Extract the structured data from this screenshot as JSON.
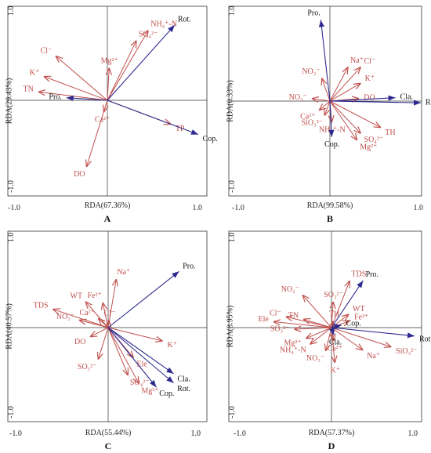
{
  "colors": {
    "env": "#c0504d",
    "species": "#2e2a8f",
    "axis": "#333333"
  },
  "chart_data": [
    {
      "type": "scatter",
      "panel": "A",
      "xlabel": "RDA(67.36%)",
      "ylabel": "RDA(29.43%)",
      "xlim": [
        -1.0,
        1.0
      ],
      "ylim": [
        -1.0,
        1.0
      ],
      "ticks": {
        "xmin": "-1.0",
        "xmax": "1.0",
        "ymin": "-1.0",
        "ymax": "1.0"
      },
      "env": [
        {
          "label": "NH₄⁺-N",
          "x": 0.45,
          "y": 0.82
        },
        {
          "label": "SO₄²⁻",
          "x": 0.32,
          "y": 0.7
        },
        {
          "label": "Cl⁻",
          "x": -0.57,
          "y": 0.52
        },
        {
          "label": "Mg²⁺",
          "x": 0.02,
          "y": 0.38
        },
        {
          "label": "K⁺",
          "x": -0.7,
          "y": 0.28
        },
        {
          "label": "TN",
          "x": -0.76,
          "y": 0.1
        },
        {
          "label": "Ca²⁺",
          "x": -0.04,
          "y": -0.14
        },
        {
          "label": "TP",
          "x": 0.7,
          "y": -0.28
        },
        {
          "label": "DO",
          "x": -0.23,
          "y": -0.78
        }
      ],
      "species": [
        {
          "label": "Rot.",
          "x": 0.74,
          "y": 0.88
        },
        {
          "label": "Pro.",
          "x": -0.45,
          "y": 0.03
        },
        {
          "label": "Cop.",
          "x": 1.0,
          "y": -0.4
        }
      ]
    },
    {
      "type": "scatter",
      "panel": "B",
      "xlabel": "RDA(99.58%)",
      "ylabel": "RDA(0.33%)",
      "xlim": [
        -1.0,
        1.0
      ],
      "ylim": [
        -1.0,
        1.0
      ],
      "ticks": {
        "xmin": "-1.0",
        "xmax": "1.0",
        "ymin": "-1.0",
        "ymax": "1.0"
      },
      "env": [
        {
          "label": "Na⁺",
          "x": 0.2,
          "y": 0.4
        },
        {
          "label": "Cl⁻",
          "x": 0.34,
          "y": 0.4
        },
        {
          "label": "NO₂⁻",
          "x": -0.09,
          "y": 0.27
        },
        {
          "label": "K⁺",
          "x": 0.34,
          "y": 0.21
        },
        {
          "label": "DO",
          "x": 0.32,
          "y": 0.03
        },
        {
          "label": "NO₃⁻",
          "x": -0.2,
          "y": 0.03
        },
        {
          "label": "Ca²⁺",
          "x": -0.12,
          "y": -0.11
        },
        {
          "label": "SiO₃²⁻",
          "x": -0.06,
          "y": -0.17
        },
        {
          "label": "NH₄⁺-N",
          "x": 0.02,
          "y": -0.25
        },
        {
          "label": "TH",
          "x": 0.56,
          "y": -0.31
        },
        {
          "label": "SO₄²⁻",
          "x": 0.34,
          "y": -0.38
        },
        {
          "label": "Mg²⁺",
          "x": 0.3,
          "y": -0.46
        }
      ],
      "species": [
        {
          "label": "Pro.",
          "x": -0.1,
          "y": 0.95
        },
        {
          "label": "Cla.",
          "x": 0.72,
          "y": 0.04
        },
        {
          "label": "Rot.",
          "x": 1.0,
          "y": -0.02
        },
        {
          "label": "Cop.",
          "x": 0.02,
          "y": -0.42
        }
      ]
    },
    {
      "type": "scatter",
      "panel": "C",
      "xlabel": "RDA(55.44%)",
      "ylabel": "RDA(40.57%)",
      "xlim": [
        -1.0,
        1.0
      ],
      "ylim": [
        -1.0,
        1.0
      ],
      "ticks": {
        "xmin": "-1.0",
        "xmax": "1.0",
        "ymin": "-1.0",
        "ymax": "1.0"
      },
      "env": [
        {
          "label": "Na⁺",
          "x": 0.09,
          "y": 0.58
        },
        {
          "label": "Fe²⁺",
          "x": -0.06,
          "y": 0.3
        },
        {
          "label": "WT",
          "x": -0.25,
          "y": 0.31
        },
        {
          "label": "TDS",
          "x": -0.61,
          "y": 0.22
        },
        {
          "label": "Ca²⁺",
          "x": -0.11,
          "y": 0.11
        },
        {
          "label": "NO₃⁻",
          "x": -0.32,
          "y": 0.09
        },
        {
          "label": "Cl⁻",
          "x": 0.01,
          "y": 0.09
        },
        {
          "label": "DO",
          "x": -0.2,
          "y": -0.11
        },
        {
          "label": "K⁺",
          "x": 0.6,
          "y": -0.16
        },
        {
          "label": "Ele",
          "x": 0.28,
          "y": -0.36
        },
        {
          "label": "SO₃²⁻",
          "x": -0.11,
          "y": -0.38
        },
        {
          "label": "SO₄²⁻",
          "x": 0.22,
          "y": -0.57
        },
        {
          "label": "Mg²⁺",
          "x": 0.34,
          "y": -0.67
        }
      ],
      "species": [
        {
          "label": "Pro.",
          "x": 0.78,
          "y": 0.67
        },
        {
          "label": "Cla.",
          "x": 0.72,
          "y": -0.55
        },
        {
          "label": "Rot.",
          "x": 0.72,
          "y": -0.66
        },
        {
          "label": "Cop.",
          "x": 0.53,
          "y": -0.71
        }
      ]
    },
    {
      "type": "scatter",
      "panel": "D",
      "xlabel": "RDA(57.37%)",
      "ylabel": "RDA(8.95%)",
      "xlim": [
        -1.0,
        1.0
      ],
      "ylim": [
        -1.0,
        1.0
      ],
      "ticks": {
        "xmin": "-1.0",
        "xmax": "1.0",
        "ymin": "-1.0",
        "ymax": "1.0"
      },
      "env": [
        {
          "label": "TDS",
          "x": 0.22,
          "y": 0.56
        },
        {
          "label": "NO₂⁻",
          "x": -0.35,
          "y": 0.39
        },
        {
          "label": "SO₂²⁻",
          "x": 0.02,
          "y": 0.31
        },
        {
          "label": "WT",
          "x": 0.21,
          "y": 0.16
        },
        {
          "label": "Cl⁻",
          "x": -0.55,
          "y": 0.13
        },
        {
          "label": "TN",
          "x": -0.34,
          "y": 0.1
        },
        {
          "label": "TH",
          "x": 0.02,
          "y": 0.08
        },
        {
          "label": "Fe²⁺",
          "x": 0.22,
          "y": 0.08
        },
        {
          "label": "Ele",
          "x": -0.7,
          "y": 0.07
        },
        {
          "label": "SO₃²⁻",
          "x": -0.45,
          "y": -0.02
        },
        {
          "label": "Mg²⁺",
          "x": -0.31,
          "y": -0.13
        },
        {
          "label": "Ca²⁺",
          "x": 0.03,
          "y": -0.16
        },
        {
          "label": "NO₃⁻",
          "x": -0.07,
          "y": -0.28
        },
        {
          "label": "NH₄⁺-N",
          "x": -0.26,
          "y": -0.2
        },
        {
          "label": "SiO₃²⁻",
          "x": 0.72,
          "y": -0.23
        },
        {
          "label": "Na⁺",
          "x": 0.38,
          "y": -0.27
        },
        {
          "label": "K⁺",
          "x": 0.04,
          "y": -0.42
        }
      ],
      "species": [
        {
          "label": "Pro.",
          "x": 0.38,
          "y": 0.56
        },
        {
          "label": "Cop.",
          "x": 0.12,
          "y": 0.03
        },
        {
          "label": "Cla.",
          "x": 0.03,
          "y": -0.09
        },
        {
          "label": "Rot.",
          "x": 1.0,
          "y": -0.1
        }
      ]
    }
  ]
}
